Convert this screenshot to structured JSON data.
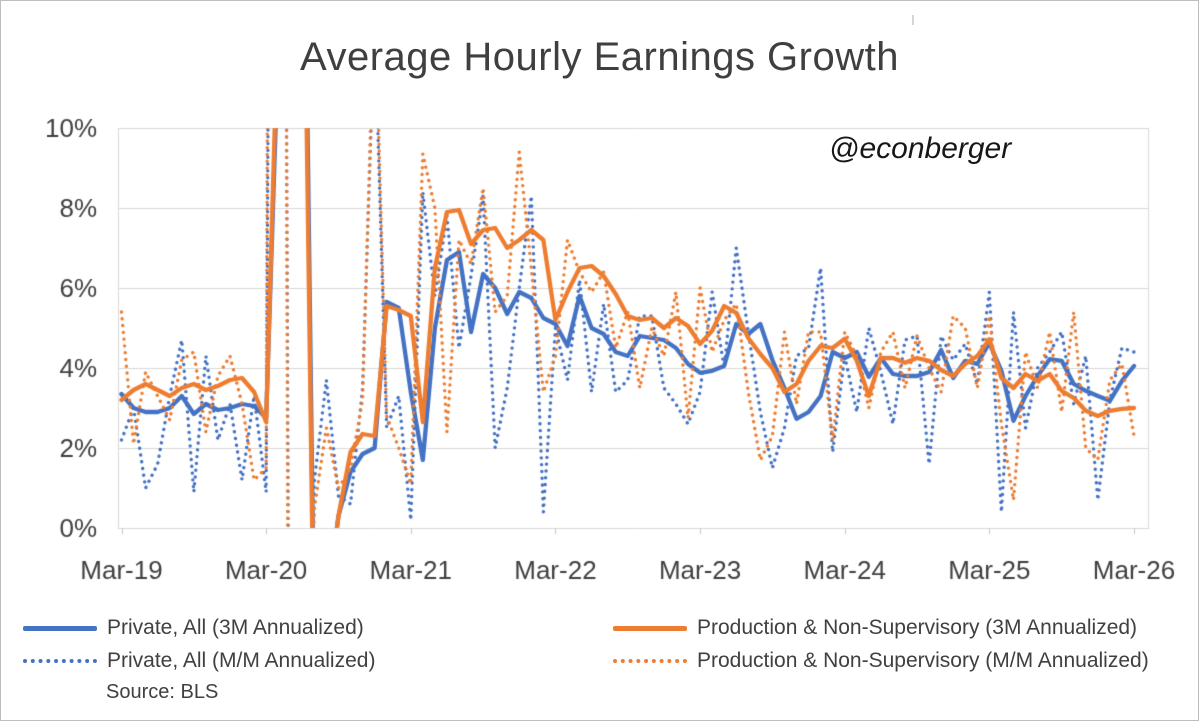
{
  "frame": {
    "title": "Average Hourly Earnings Growth",
    "watermark": "@econberger"
  },
  "legend": {
    "items": [
      {
        "label": "Private, All (3M Annualized)",
        "color": "#4472C4",
        "style": "solid"
      },
      {
        "label": "Private, All (M/M Annualized)",
        "color": "#4472C4",
        "style": "dotted"
      },
      {
        "label": "Production & Non-Supervisory (3M Annualized)",
        "color": "#ED7D31",
        "style": "solid"
      },
      {
        "label": "Production & Non-Supervisory (M/M Annualized)",
        "color": "#ED7D31",
        "style": "dotted"
      }
    ],
    "source_note": "Source: BLS"
  },
  "colors": {
    "blue": "#4472C4",
    "orange": "#ED7D31",
    "grid": "#D9D9D9",
    "axis": "#C6C6C6",
    "text": "#3F3F3F"
  },
  "chart_data": {
    "type": "line",
    "title": "Average Hourly Earnings Growth",
    "x_unit": "monthly",
    "x_start_label": "Mar-19",
    "x_end_label": "Mar-26",
    "x_tick_labels": [
      "Mar-19",
      "Mar-20",
      "Mar-21",
      "Mar-22",
      "Mar-23",
      "Mar-24",
      "Mar-25",
      "Mar-26"
    ],
    "y_tick_labels": [
      "10%",
      "8%",
      "6%",
      "4%",
      "2%",
      "0%"
    ],
    "y_tick_values": [
      10,
      8,
      6,
      4,
      2,
      0
    ],
    "ylim": [
      0,
      10
    ],
    "grid": "horizontal",
    "legend_position": "bottom",
    "units": "percent",
    "series": [
      {
        "name": "Private, All (3M Annualized)",
        "color": "#4472C4",
        "style": "solid",
        "values": [
          3.35,
          3.0,
          2.9,
          2.9,
          3.0,
          3.3,
          2.85,
          3.1,
          2.95,
          3.0,
          3.1,
          3.05,
          2.75,
          12,
          25,
          20,
          -3,
          -2,
          0.3,
          1.4,
          1.85,
          2.0,
          5.65,
          5.5,
          3.4,
          1.7,
          5.0,
          6.7,
          6.9,
          4.9,
          6.35,
          6.0,
          5.35,
          5.9,
          5.75,
          5.25,
          5.1,
          4.55,
          5.8,
          5.0,
          4.85,
          4.4,
          4.3,
          4.8,
          4.75,
          4.7,
          4.5,
          4.1,
          3.88,
          3.93,
          4.05,
          5.1,
          4.85,
          5.1,
          4.2,
          3.5,
          2.73,
          2.9,
          3.3,
          4.4,
          4.25,
          4.4,
          3.78,
          4.25,
          3.85,
          3.8,
          3.8,
          3.9,
          4.45,
          3.75,
          4.18,
          4.1,
          4.63,
          3.93,
          2.68,
          3.3,
          3.8,
          4.22,
          4.18,
          3.6,
          3.43,
          3.3,
          3.18,
          3.68,
          4.05
        ]
      },
      {
        "name": "Private, All (M/M Annualized)",
        "color": "#4472C4",
        "style": "dotted",
        "values": [
          2.2,
          3.0,
          1.0,
          1.6,
          3.3,
          4.7,
          0.9,
          4.3,
          2.2,
          3.1,
          1.2,
          3.3,
          0.9,
          60,
          -12,
          -14,
          1.2,
          3.7,
          0.8,
          0.6,
          3.5,
          12.7,
          2.5,
          3.3,
          0.2,
          8.4,
          5.8,
          7.8,
          4.5,
          6.3,
          8.3,
          2.0,
          3.5,
          6.0,
          8.3,
          0.4,
          5.0,
          3.7,
          6.2,
          3.4,
          5.6,
          3.4,
          3.7,
          5.3,
          5.3,
          3.5,
          3.1,
          2.6,
          3.4,
          5.9,
          4.0,
          7.0,
          4.9,
          2.9,
          1.5,
          2.5,
          4.3,
          4.5,
          6.5,
          1.9,
          4.3,
          2.9,
          5.0,
          3.9,
          2.6,
          4.7,
          4.8,
          1.6,
          4.8,
          4.2,
          4.6,
          3.6,
          5.9,
          0.4,
          5.4,
          2.5,
          4.0,
          4.4,
          4.9,
          3.1,
          4.3,
          0.7,
          3.2,
          4.5,
          4.4
        ]
      },
      {
        "name": "Production & Non-Supervisory (3M Annualized)",
        "color": "#ED7D31",
        "style": "solid",
        "values": [
          3.2,
          3.45,
          3.6,
          3.45,
          3.3,
          3.5,
          3.6,
          3.45,
          3.55,
          3.7,
          3.75,
          3.4,
          2.65,
          13,
          26,
          18,
          -4,
          -2,
          0.3,
          1.9,
          2.35,
          2.3,
          5.55,
          5.45,
          5.3,
          2.65,
          6.5,
          7.9,
          7.95,
          7.1,
          7.45,
          7.5,
          7.0,
          7.2,
          7.45,
          7.2,
          5.2,
          5.9,
          6.5,
          6.55,
          6.3,
          5.85,
          5.3,
          5.2,
          5.25,
          5.0,
          5.25,
          5.05,
          4.6,
          4.93,
          5.55,
          5.38,
          4.75,
          4.35,
          4.0,
          3.4,
          3.6,
          4.18,
          4.55,
          4.5,
          4.73,
          4.18,
          3.3,
          4.25,
          4.25,
          4.13,
          4.25,
          4.18,
          3.95,
          3.8,
          4.1,
          4.3,
          4.72,
          3.75,
          3.5,
          3.85,
          3.68,
          3.85,
          3.43,
          3.25,
          2.93,
          2.8,
          2.93,
          2.98,
          3.0
        ]
      },
      {
        "name": "Production & Non-Supervisory (M/M Annualized)",
        "color": "#ED7D31",
        "style": "dotted",
        "values": [
          5.4,
          2.1,
          3.9,
          3.3,
          2.7,
          4.2,
          4.4,
          2.4,
          3.8,
          4.3,
          3.1,
          1.2,
          1.5,
          90,
          -25,
          -12,
          0.5,
          2.5,
          1.0,
          1.5,
          3.2,
          13.5,
          2.8,
          2.0,
          1.1,
          9.35,
          8.0,
          2.4,
          7.2,
          6.6,
          8.5,
          5.4,
          5.8,
          9.4,
          6.5,
          3.4,
          4.3,
          7.2,
          6.4,
          5.9,
          6.4,
          4.5,
          5.4,
          3.5,
          5.0,
          4.3,
          5.9,
          2.75,
          6.0,
          4.4,
          5.2,
          5.6,
          3.4,
          1.7,
          2.3,
          4.9,
          3.1,
          4.9,
          4.9,
          2.2,
          4.9,
          4.3,
          3.0,
          4.4,
          4.9,
          3.5,
          4.8,
          4.0,
          3.4,
          5.3,
          5.0,
          3.5,
          5.3,
          2.6,
          0.7,
          4.4,
          3.5,
          4.9,
          2.9,
          5.4,
          2.0,
          1.7,
          3.7,
          4.1,
          2.3
        ]
      }
    ]
  }
}
